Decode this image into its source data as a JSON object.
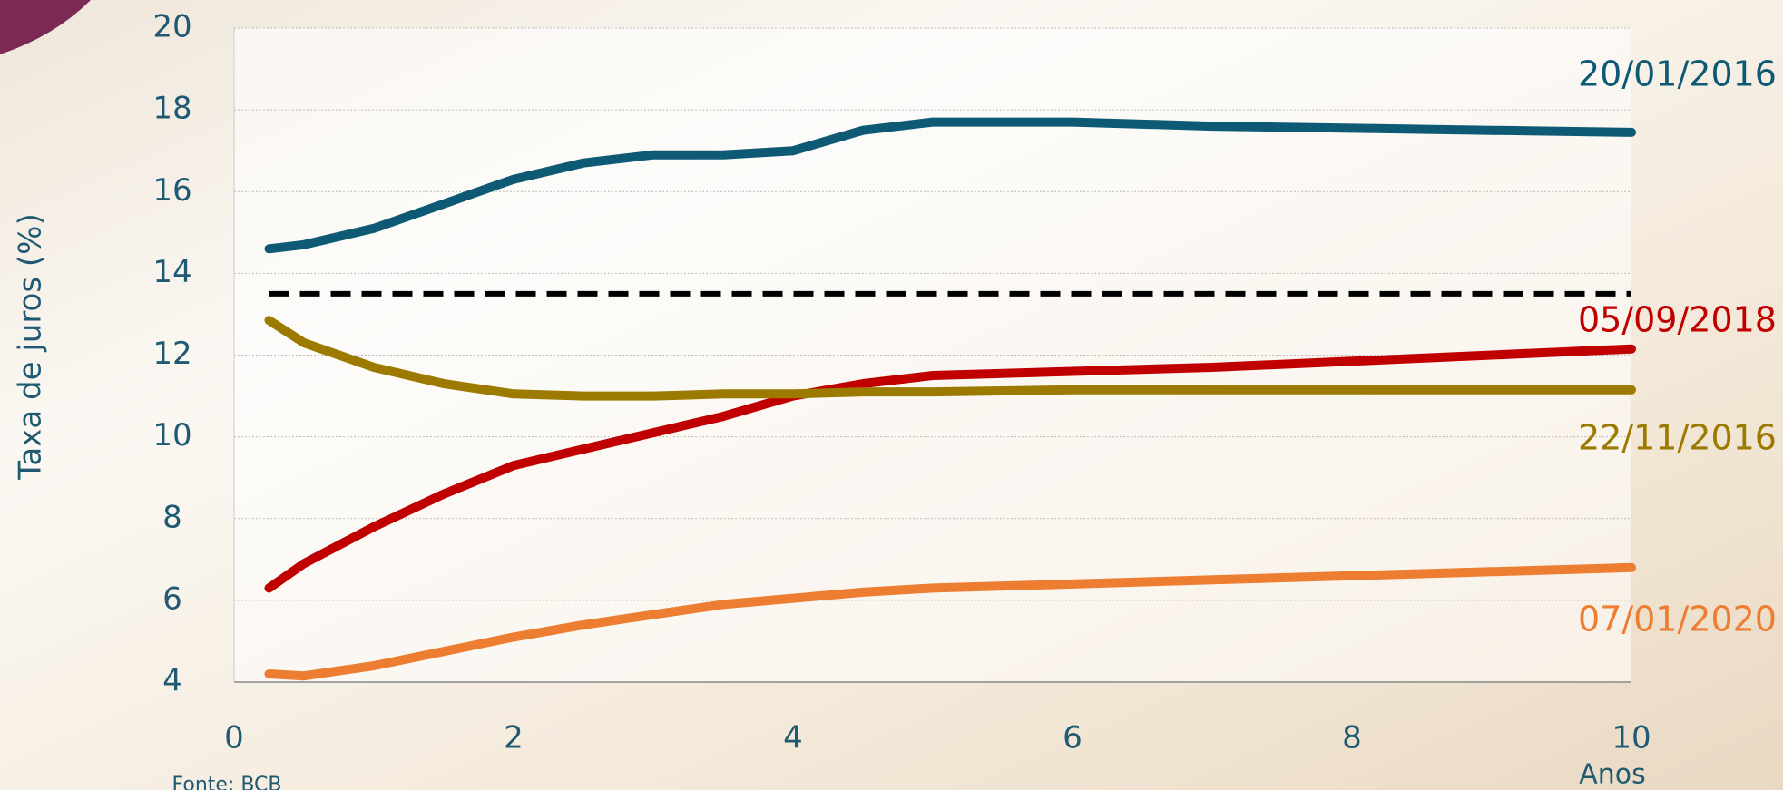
{
  "chart_data": {
    "type": "line",
    "y_label": "Taxa de juros (%)",
    "x_label": "Anos",
    "source": "Fonte: BCB",
    "x": [
      0.25,
      0.5,
      1,
      1.5,
      2,
      2.5,
      3,
      3.5,
      4,
      4.5,
      5,
      6,
      7,
      8,
      9,
      10
    ],
    "series": [
      {
        "name": "20/01/2016",
        "color": "#0e5a74",
        "values": [
          14.6,
          14.7,
          15.1,
          15.7,
          16.3,
          16.7,
          16.9,
          16.9,
          17.0,
          17.5,
          17.7,
          17.7,
          17.6,
          17.55,
          17.5,
          17.45
        ]
      },
      {
        "name": "05/09/2018",
        "color": "#c00000",
        "values": [
          6.3,
          6.9,
          7.8,
          8.6,
          9.3,
          9.7,
          10.1,
          10.5,
          11.0,
          11.3,
          11.5,
          11.6,
          11.7,
          11.85,
          12.0,
          12.15
        ]
      },
      {
        "name": "22/11/2016",
        "color": "#9c7a00",
        "values": [
          12.85,
          12.3,
          11.7,
          11.3,
          11.05,
          11.0,
          11.0,
          11.05,
          11.05,
          11.1,
          11.1,
          11.15,
          11.15,
          11.15,
          11.15,
          11.15
        ]
      },
      {
        "name": "07/01/2020",
        "color": "#ed7d31",
        "values": [
          4.2,
          4.15,
          4.4,
          4.75,
          5.1,
          5.4,
          5.65,
          5.9,
          6.05,
          6.2,
          6.3,
          6.4,
          6.5,
          6.6,
          6.7,
          6.8
        ]
      }
    ],
    "reference_line": 13.5,
    "xlim": [
      0,
      10
    ],
    "xticks": [
      0,
      2,
      4,
      6,
      8,
      10
    ],
    "ylim": [
      4,
      20
    ],
    "yticks": [
      4,
      6,
      8,
      10,
      12,
      14,
      16,
      18,
      20
    ],
    "grid": true
  }
}
